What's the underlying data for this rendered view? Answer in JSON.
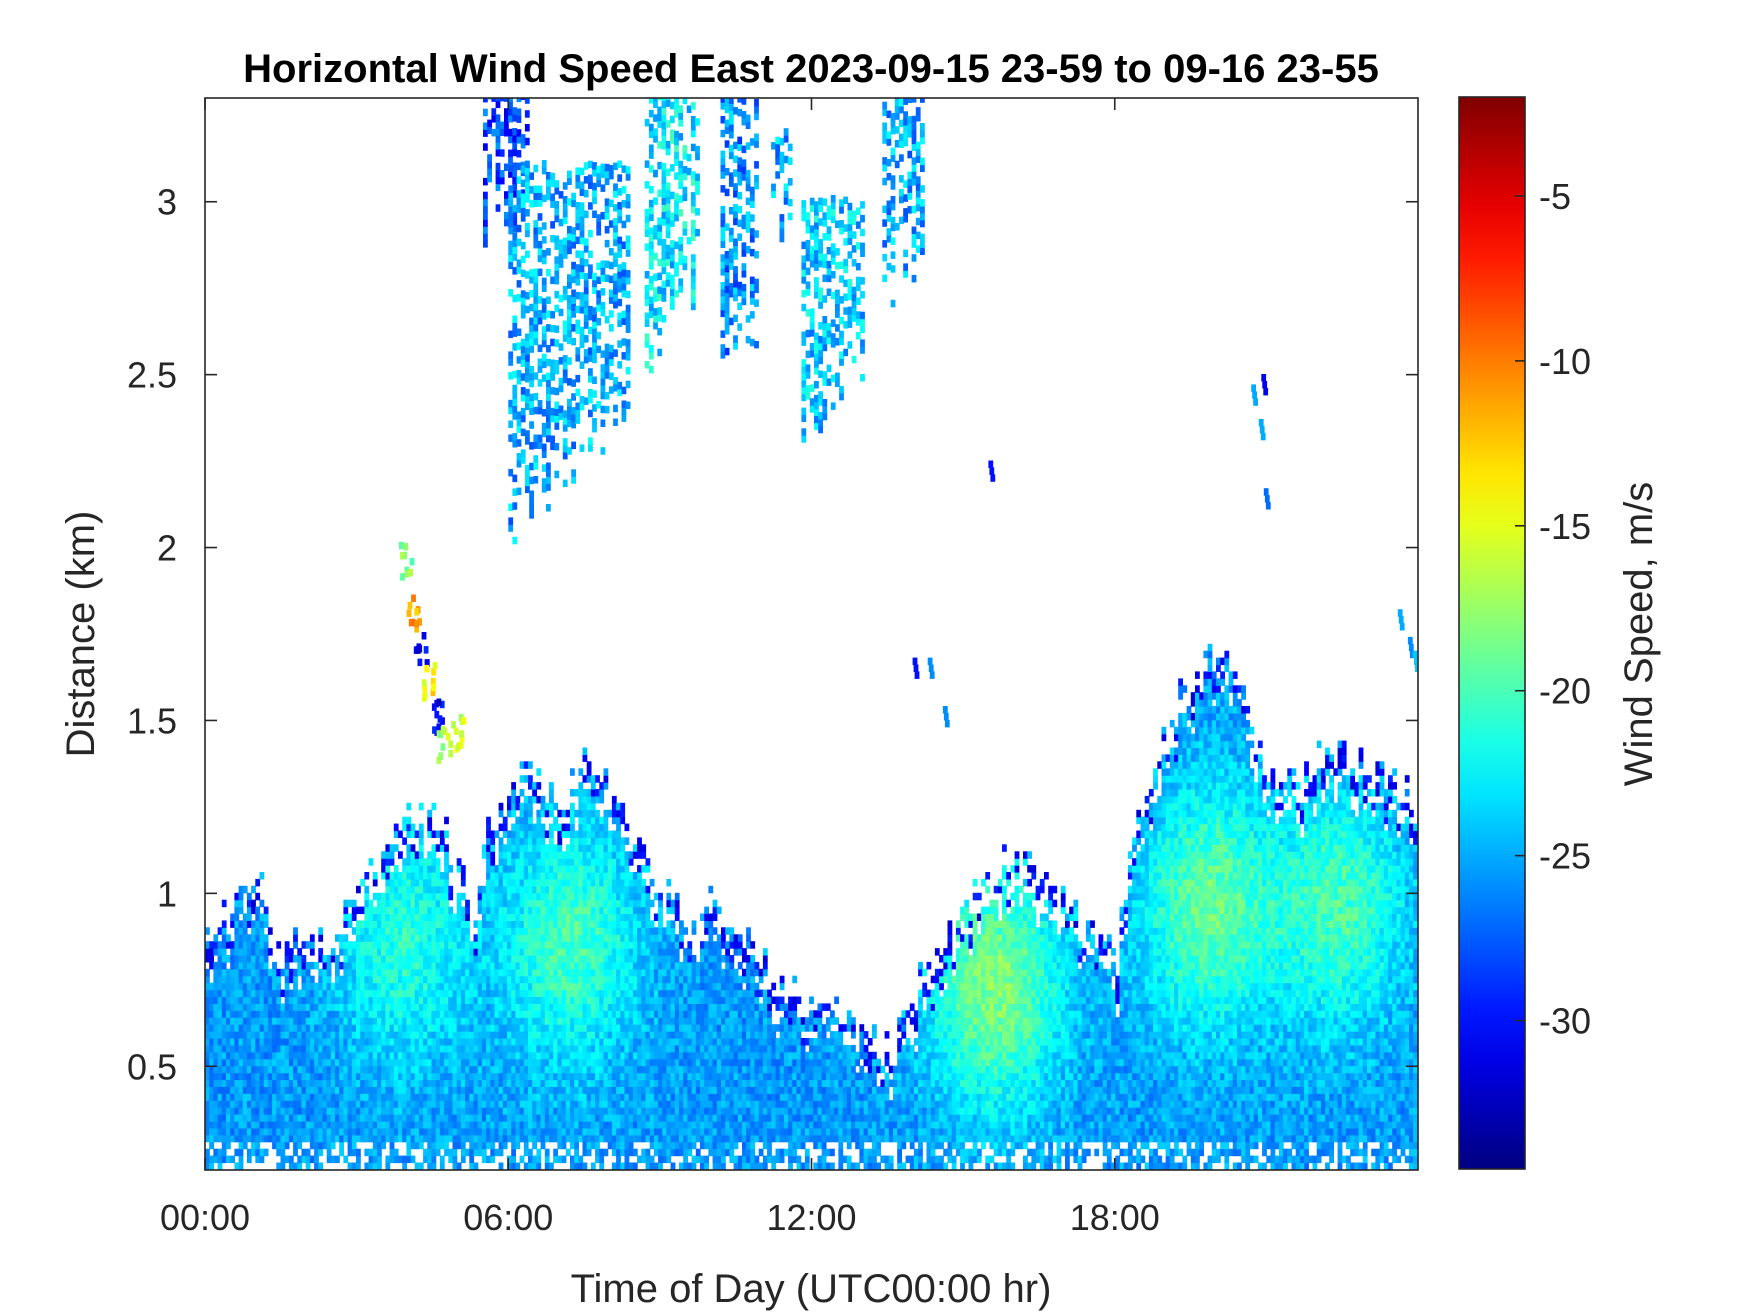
{
  "chart_data": {
    "type": "heatmap",
    "title": "Horizontal Wind Speed East 2023-09-15 23-59 to 09-16 23-55",
    "xlabel": "Time of Day (UTC00:00 hr)",
    "ylabel": "Distance (km)",
    "colorbar_label": "Wind Speed, m/s",
    "colormap": "jet",
    "xlim": [
      0,
      24
    ],
    "ylim": [
      0.2,
      3.3
    ],
    "clim": [
      -34.5,
      -2
    ],
    "x_ticks": [
      {
        "value": 0,
        "label": "00:00"
      },
      {
        "value": 6,
        "label": "06:00"
      },
      {
        "value": 12,
        "label": "12:00"
      },
      {
        "value": 18,
        "label": "18:00"
      }
    ],
    "y_ticks": [
      {
        "value": 0.5,
        "label": "0.5"
      },
      {
        "value": 1,
        "label": "1"
      },
      {
        "value": 1.5,
        "label": "1.5"
      },
      {
        "value": 2,
        "label": "2"
      },
      {
        "value": 2.5,
        "label": "2.5"
      },
      {
        "value": 3,
        "label": "3"
      }
    ],
    "colorbar_ticks": [
      {
        "value": -5,
        "label": "-5"
      },
      {
        "value": -10,
        "label": "-10"
      },
      {
        "value": -15,
        "label": "-15"
      },
      {
        "value": -20,
        "label": "-20"
      },
      {
        "value": -25,
        "label": "-25"
      },
      {
        "value": -30,
        "label": "-30"
      }
    ],
    "grid": false,
    "cell": {
      "dt_hours": 0.083,
      "dz_km": 0.02
    },
    "boundary_layer_top": {
      "x": [
        0,
        0.5,
        1.0,
        1.5,
        2.0,
        2.5,
        3.0,
        3.5,
        4.0,
        4.5,
        5.0,
        5.35,
        5.5,
        6.0,
        6.5,
        7.0,
        7.5,
        8.0,
        8.5,
        9.0,
        9.5,
        10.0,
        10.5,
        11.0,
        11.5,
        12.0,
        12.5,
        13.0,
        13.5,
        14.0,
        14.5,
        15.0,
        15.5,
        16.0,
        16.5,
        17.0,
        17.5,
        18.0,
        18.3,
        18.7,
        19.0,
        19.5,
        20.0,
        20.5,
        21.0,
        21.5,
        22.0,
        22.5,
        23.0,
        23.5,
        24.0
      ],
      "y": [
        0.85,
        0.95,
        1.05,
        0.8,
        0.9,
        0.85,
        1.05,
        1.15,
        1.2,
        1.25,
        1.05,
        0.95,
        1.15,
        1.3,
        1.35,
        1.25,
        1.4,
        1.3,
        1.15,
        1.0,
        0.95,
        0.95,
        0.9,
        0.8,
        0.7,
        0.7,
        0.65,
        0.6,
        0.55,
        0.7,
        0.85,
        0.95,
        1.05,
        1.1,
        1.05,
        0.95,
        0.9,
        0.8,
        1.1,
        1.35,
        1.5,
        1.6,
        1.7,
        1.6,
        1.35,
        1.3,
        1.4,
        1.4,
        1.35,
        1.3,
        1.25
      ]
    },
    "boundary_layer_colour": "#33b0f0",
    "cloud_plumes": [
      {
        "x0": 5.5,
        "x1": 6.4,
        "ytop": 3.3,
        "ybot": 2.95,
        "v": -28
      },
      {
        "x0": 6.0,
        "x1": 8.4,
        "ytop": 3.1,
        "ybot": 2.1,
        "v": -25
      },
      {
        "x0": 8.7,
        "x1": 9.7,
        "ytop": 3.3,
        "ybot": 2.55,
        "v": -23
      },
      {
        "x0": 10.2,
        "x1": 10.9,
        "ytop": 3.3,
        "ybot": 2.45,
        "v": -26
      },
      {
        "x0": 11.2,
        "x1": 11.6,
        "ytop": 3.2,
        "ybot": 2.9,
        "v": -25
      },
      {
        "x0": 11.8,
        "x1": 13.0,
        "ytop": 3.0,
        "ybot": 2.35,
        "v": -24
      },
      {
        "x0": 13.4,
        "x1": 14.2,
        "ytop": 3.3,
        "ybot": 2.75,
        "v": -25
      }
    ],
    "jet_streak": {
      "points": [
        [
          3.95,
          1.95,
          -18
        ],
        [
          4.1,
          1.8,
          -11
        ],
        [
          4.25,
          1.7,
          -31
        ],
        [
          4.4,
          1.6,
          -14
        ],
        [
          4.55,
          1.5,
          -31
        ],
        [
          4.7,
          1.42,
          -17
        ],
        [
          4.95,
          1.45,
          -16
        ]
      ]
    },
    "sparse_points": [
      [
        14.0,
        1.66,
        -30
      ],
      [
        14.3,
        1.66,
        -26
      ],
      [
        14.6,
        1.52,
        -26
      ],
      [
        20.9,
        2.48,
        -31
      ],
      [
        20.7,
        2.45,
        -25
      ],
      [
        20.95,
        2.15,
        -27
      ],
      [
        20.85,
        2.35,
        -25
      ],
      [
        23.6,
        1.8,
        -25
      ],
      [
        23.8,
        1.72,
        -26
      ],
      [
        23.9,
        1.68,
        -24
      ],
      [
        15.5,
        2.23,
        -30
      ]
    ],
    "core_centres": [
      {
        "x": 3.9,
        "y": 0.85,
        "v": -21
      },
      {
        "x": 7.2,
        "y": 0.85,
        "v": -20
      },
      {
        "x": 15.6,
        "y": 0.72,
        "v": -18
      },
      {
        "x": 19.8,
        "y": 0.95,
        "v": -19
      },
      {
        "x": 22.4,
        "y": 0.95,
        "v": -20
      }
    ]
  }
}
